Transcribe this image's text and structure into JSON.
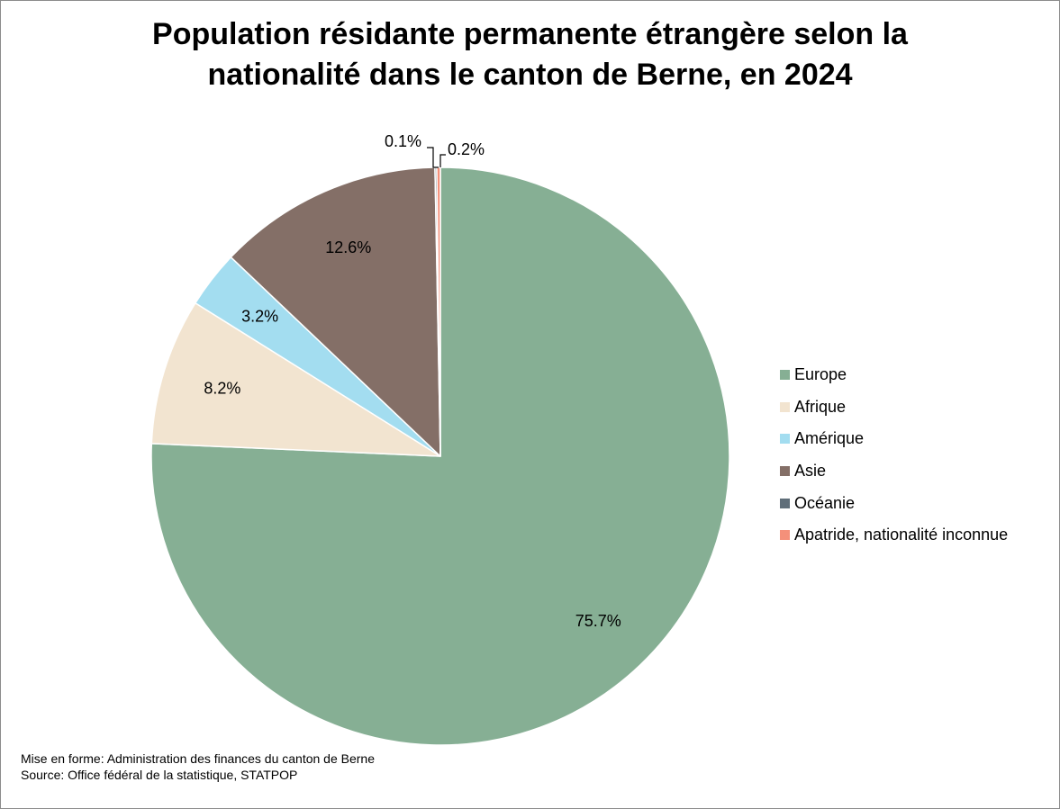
{
  "chart_data": {
    "type": "pie",
    "title_lines": [
      "Population résidante permanente étrangère selon la",
      "nationalité dans le canton de Berne, en 2024"
    ],
    "slices": [
      {
        "name": "Europe",
        "value": 75.7,
        "label": "75.7%",
        "color": "#86AF94"
      },
      {
        "name": "Afrique",
        "value": 8.2,
        "label": "8.2%",
        "color": "#F2E4D0"
      },
      {
        "name": "Amérique",
        "value": 3.2,
        "label": "3.2%",
        "color": "#A3DDF0"
      },
      {
        "name": "Asie",
        "value": 12.6,
        "label": "12.6%",
        "color": "#846F67"
      },
      {
        "name": "Océanie",
        "value": 0.1,
        "label": "0.1%",
        "color": "#5F6E79"
      },
      {
        "name": "Apatride, nationalité inconnue",
        "value": 0.2,
        "label": "0.2%",
        "color": "#F4907A"
      }
    ],
    "legend_position": "right"
  },
  "footer": {
    "line1": "Mise en forme: Administration des finances du canton de Berne",
    "line2": "Source: Office fédéral de la statistique, STATPOP"
  }
}
